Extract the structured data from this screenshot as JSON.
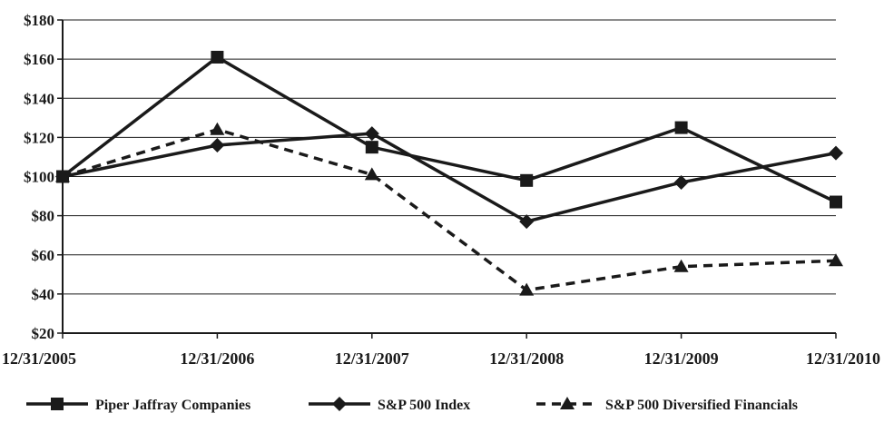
{
  "chart_data": {
    "type": "line",
    "categories": [
      "12/31/2005",
      "12/31/2006",
      "12/31/2007",
      "12/31/2008",
      "12/31/2009",
      "12/31/2010"
    ],
    "ylim": [
      20,
      180
    ],
    "yticks": [
      20,
      40,
      60,
      80,
      100,
      120,
      140,
      160,
      180
    ],
    "ytick_labels": [
      "$20",
      "$40",
      "$60",
      "$80",
      "$100",
      "$120",
      "$140",
      "$160",
      "$180"
    ],
    "grid": true,
    "legend_position": "bottom",
    "series": [
      {
        "name": "Piper Jaffray Companies",
        "values": [
          100,
          161,
          115,
          98,
          125,
          87
        ],
        "marker": "square",
        "line": "solid",
        "color": "#1a1a1a"
      },
      {
        "name": "S&P 500 Index",
        "values": [
          100,
          116,
          122,
          77,
          97,
          112
        ],
        "marker": "diamond",
        "line": "solid",
        "color": "#1a1a1a"
      },
      {
        "name": "S&P 500 Diversified Financials",
        "values": [
          100,
          124,
          101,
          42,
          54,
          57
        ],
        "marker": "triangle",
        "line": "dashed",
        "color": "#1a1a1a"
      }
    ]
  }
}
